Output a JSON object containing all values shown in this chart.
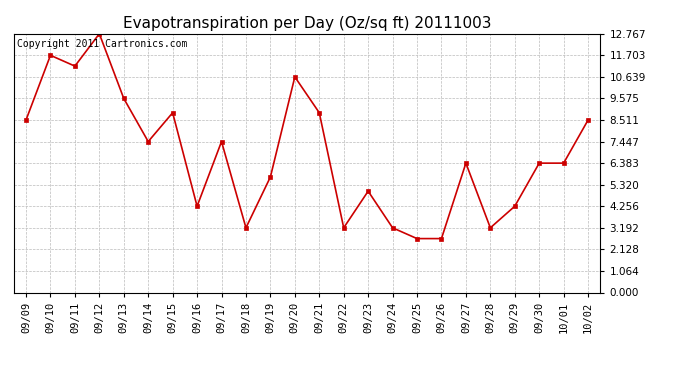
{
  "title": "Evapotranspiration per Day (Oz/sq ft) 20111003",
  "copyright_text": "Copyright 2011 Cartronics.com",
  "x_labels": [
    "09/09",
    "09/10",
    "09/11",
    "09/12",
    "09/13",
    "09/14",
    "09/15",
    "09/16",
    "09/17",
    "09/18",
    "09/19",
    "09/20",
    "09/21",
    "09/22",
    "09/23",
    "09/24",
    "09/25",
    "09/26",
    "09/27",
    "09/28",
    "09/29",
    "09/30",
    "10/01",
    "10/02"
  ],
  "y_values": [
    8.511,
    11.703,
    11.17,
    12.767,
    9.575,
    7.447,
    8.87,
    4.256,
    7.447,
    3.192,
    5.7,
    10.639,
    8.87,
    3.192,
    5.0,
    3.192,
    2.66,
    2.66,
    6.383,
    3.192,
    4.256,
    6.383,
    6.383,
    8.511
  ],
  "line_color": "#cc0000",
  "marker_color": "#cc0000",
  "bg_color": "#ffffff",
  "grid_color": "#bbbbbb",
  "yticks": [
    0.0,
    1.064,
    2.128,
    3.192,
    4.256,
    5.32,
    6.383,
    7.447,
    8.511,
    9.575,
    10.639,
    11.703,
    12.767
  ],
  "ylim": [
    0.0,
    12.767
  ],
  "title_fontsize": 11,
  "tick_fontsize": 7.5,
  "copyright_fontsize": 7
}
